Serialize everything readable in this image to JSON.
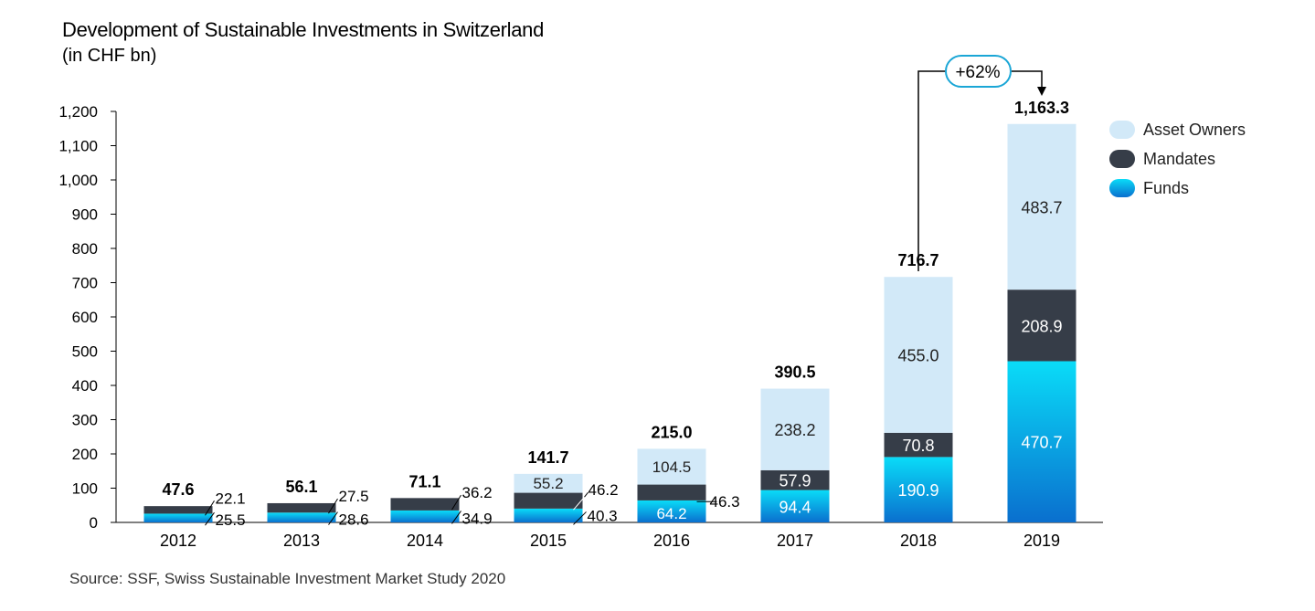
{
  "chart_data": {
    "type": "bar",
    "stacked": true,
    "title": "Development of Sustainable Investments in Switzerland",
    "subtitle": "(in CHF bn)",
    "categories": [
      "2012",
      "2013",
      "2014",
      "2015",
      "2016",
      "2017",
      "2018",
      "2019"
    ],
    "series": [
      {
        "name": "Funds",
        "values": [
          25.5,
          28.6,
          34.9,
          40.3,
          64.2,
          94.4,
          190.9,
          470.7
        ]
      },
      {
        "name": "Mandates",
        "values": [
          22.1,
          27.5,
          36.2,
          46.2,
          46.3,
          57.9,
          70.8,
          208.9
        ]
      },
      {
        "name": "Asset Owners",
        "values": [
          0,
          0,
          0,
          55.2,
          104.5,
          238.2,
          455.0,
          483.7
        ]
      }
    ],
    "totals": [
      "47.6",
      "56.1",
      "71.1",
      "141.7",
      "215.0",
      "390.5",
      "716.7",
      "1,163.3"
    ],
    "value_labels": {
      "Funds": [
        "25.5",
        "28.6",
        "34.9",
        "40.3",
        "64.2",
        "94.4",
        "190.9",
        "470.7"
      ],
      "Mandates": [
        "22.1",
        "27.5",
        "36.2",
        "46.2",
        "46.3",
        "57.9",
        "70.8",
        "208.9"
      ],
      "Asset Owners": [
        "",
        "",
        "",
        "55.2",
        "104.5",
        "238.2",
        "455.0",
        "483.7"
      ]
    },
    "y_ticks": [
      "0",
      "100",
      "200",
      "300",
      "400",
      "500",
      "600",
      "700",
      "800",
      "900",
      "1,000",
      "1,100",
      "1,200"
    ],
    "ylim": [
      0,
      1200
    ],
    "grid": false,
    "legend_position": "right",
    "legend": [
      "Asset Owners",
      "Mandates",
      "Funds"
    ],
    "annotation": {
      "label": "+62%",
      "from": "2018",
      "to": "2019"
    },
    "colors": {
      "Asset Owners": "#d2e9f8",
      "Mandates": "#363d48",
      "Funds_top": "#0adcf8",
      "Funds_bottom": "#0a6fce",
      "annotation_border": "#1aa6d6"
    }
  },
  "source": "Source: SSF, Swiss Sustainable Investment Market Study 2020"
}
